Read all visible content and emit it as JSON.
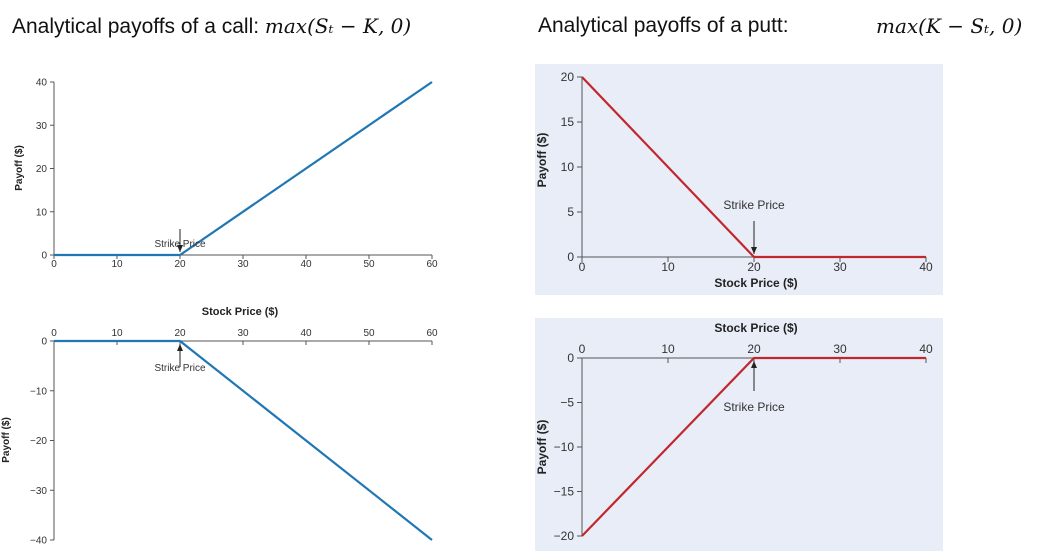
{
  "headings": {
    "call_text": "Analytical payoffs of a call:",
    "call_formula": "max(Sₜ − K, 0)",
    "put_text": "Analytical payoffs of a putt:",
    "put_formula": "max(K − Sₜ, 0)"
  },
  "colors": {
    "blue": "#1f77b4",
    "red": "#c1272d",
    "panel_bg": "#e8edf7",
    "axis": "#555555"
  },
  "chart_data": [
    {
      "id": "long-call",
      "type": "line",
      "title": "",
      "xlabel": "Stock Price ($)",
      "ylabel": "Payoff ($)",
      "xlim": [
        0,
        60
      ],
      "ylim": [
        0,
        40
      ],
      "xticks": [
        0,
        10,
        20,
        30,
        40,
        50,
        60
      ],
      "yticks": [
        0,
        10,
        20,
        30,
        40
      ],
      "series": [
        {
          "x": [
            0,
            20,
            60
          ],
          "y": [
            0,
            0,
            40
          ]
        }
      ],
      "annotation": {
        "text": "Strike Price",
        "x": 20,
        "y": 0
      },
      "color": "blue",
      "background": "none",
      "x_axis_position": "bottom"
    },
    {
      "id": "short-call",
      "type": "line",
      "title": "",
      "xlabel": "",
      "ylabel": "Payoff ($)",
      "xlim": [
        0,
        60
      ],
      "ylim": [
        -40,
        0
      ],
      "xticks": [
        0,
        10,
        20,
        30,
        40,
        50,
        60
      ],
      "yticks": [
        0,
        -10,
        -20,
        -30,
        -40
      ],
      "series": [
        {
          "x": [
            0,
            20,
            60
          ],
          "y": [
            0,
            0,
            -40
          ]
        }
      ],
      "annotation": {
        "text": "Strike Price",
        "x": 20,
        "y": 0
      },
      "color": "blue",
      "background": "none",
      "x_axis_position": "top"
    },
    {
      "id": "long-put",
      "type": "line",
      "title": "",
      "xlabel": "Stock Price ($)",
      "ylabel": "Payoff ($)",
      "xlim": [
        0,
        40
      ],
      "ylim": [
        0,
        20
      ],
      "xticks": [
        0,
        10,
        20,
        30,
        40
      ],
      "yticks": [
        0,
        5,
        10,
        15,
        20
      ],
      "series": [
        {
          "x": [
            0,
            20,
            40
          ],
          "y": [
            20,
            0,
            0
          ]
        }
      ],
      "annotation": {
        "text": "Strike Price",
        "x": 20,
        "y": 0
      },
      "color": "red",
      "background": "panel",
      "x_axis_position": "bottom"
    },
    {
      "id": "short-put",
      "type": "line",
      "title": "",
      "xlabel": "Stock Price ($)",
      "ylabel": "Payoff ($)",
      "xlim": [
        0,
        40
      ],
      "ylim": [
        -20,
        0
      ],
      "xticks": [
        0,
        10,
        20,
        30,
        40
      ],
      "yticks": [
        0,
        -5,
        -10,
        -15,
        -20
      ],
      "series": [
        {
          "x": [
            0,
            20,
            40
          ],
          "y": [
            -20,
            0,
            0
          ]
        }
      ],
      "annotation": {
        "text": "Strike Price",
        "x": 20,
        "y": 0
      },
      "color": "red",
      "background": "panel",
      "x_axis_position": "top"
    }
  ]
}
